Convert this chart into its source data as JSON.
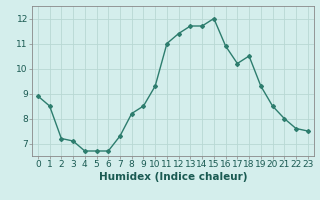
{
  "x": [
    0,
    1,
    2,
    3,
    4,
    5,
    6,
    7,
    8,
    9,
    10,
    11,
    12,
    13,
    14,
    15,
    16,
    17,
    18,
    19,
    20,
    21,
    22,
    23
  ],
  "y": [
    8.9,
    8.5,
    7.2,
    7.1,
    6.7,
    6.7,
    6.7,
    7.3,
    8.2,
    8.5,
    9.3,
    11.0,
    11.4,
    11.7,
    11.7,
    12.0,
    10.9,
    10.2,
    10.5,
    9.3,
    8.5,
    8.0,
    7.6,
    7.5
  ],
  "line_color": "#2d7d6e",
  "marker": "D",
  "marker_size": 2.0,
  "line_width": 1.0,
  "bg_color": "#d4eeec",
  "grid_color": "#b8d8d4",
  "xlabel": "Humidex (Indice chaleur)",
  "xlabel_fontsize": 7.5,
  "ylim": [
    6.5,
    12.5
  ],
  "yticks": [
    7,
    8,
    9,
    10,
    11,
    12
  ],
  "xticks": [
    0,
    1,
    2,
    3,
    4,
    5,
    6,
    7,
    8,
    9,
    10,
    11,
    12,
    13,
    14,
    15,
    16,
    17,
    18,
    19,
    20,
    21,
    22,
    23
  ],
  "tick_fontsize": 6.5,
  "xlabel_fontweight": "bold"
}
